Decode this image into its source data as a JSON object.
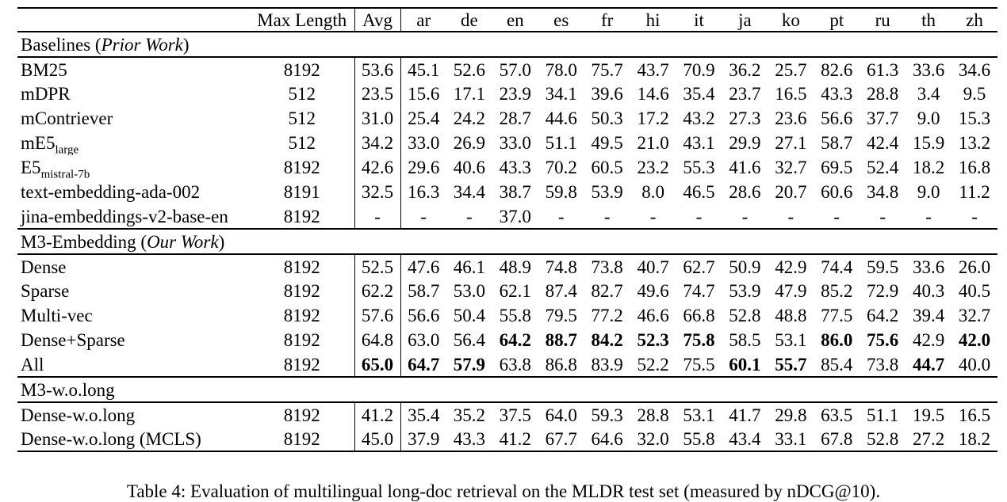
{
  "table": {
    "caption": "Table 4: Evaluation of multilingual long-doc retrieval on the MLDR test set (measured by nDCG@10).",
    "columns": [
      "",
      "Max Length",
      "Avg",
      "ar",
      "de",
      "en",
      "es",
      "fr",
      "hi",
      "it",
      "ja",
      "ko",
      "pt",
      "ru",
      "th",
      "zh"
    ],
    "sections": [
      {
        "title": {
          "prefix": "Baselines (",
          "italic": "Prior Work",
          "suffix": ")"
        },
        "rows": [
          {
            "label": "BM25",
            "label_sub": "",
            "max_length": "8192",
            "avg": "53.6",
            "avg_bold": false,
            "values": [
              "45.1",
              "52.6",
              "57.0",
              "78.0",
              "75.7",
              "43.7",
              "70.9",
              "36.2",
              "25.7",
              "82.6",
              "61.3",
              "33.6",
              "34.6"
            ],
            "bold_indices": []
          },
          {
            "label": "mDPR",
            "label_sub": "",
            "max_length": "512",
            "avg": "23.5",
            "avg_bold": false,
            "values": [
              "15.6",
              "17.1",
              "23.9",
              "34.1",
              "39.6",
              "14.6",
              "35.4",
              "23.7",
              "16.5",
              "43.3",
              "28.8",
              "3.4",
              "9.5"
            ],
            "bold_indices": []
          },
          {
            "label": "mContriever",
            "label_sub": "",
            "max_length": "512",
            "avg": "31.0",
            "avg_bold": false,
            "values": [
              "25.4",
              "24.2",
              "28.7",
              "44.6",
              "50.3",
              "17.2",
              "43.2",
              "27.3",
              "23.6",
              "56.6",
              "37.7",
              "9.0",
              "15.3"
            ],
            "bold_indices": []
          },
          {
            "label": "mE5",
            "label_sub": "large",
            "max_length": "512",
            "avg": "34.2",
            "avg_bold": false,
            "values": [
              "33.0",
              "26.9",
              "33.0",
              "51.1",
              "49.5",
              "21.0",
              "43.1",
              "29.9",
              "27.1",
              "58.7",
              "42.4",
              "15.9",
              "13.2"
            ],
            "bold_indices": []
          },
          {
            "label": "E5",
            "label_sub": "mistral-7b",
            "max_length": "8192",
            "avg": "42.6",
            "avg_bold": false,
            "values": [
              "29.6",
              "40.6",
              "43.3",
              "70.2",
              "60.5",
              "23.2",
              "55.3",
              "41.6",
              "32.7",
              "69.5",
              "52.4",
              "18.2",
              "16.8"
            ],
            "bold_indices": []
          },
          {
            "label": "text-embedding-ada-002",
            "label_sub": "",
            "max_length": "8191",
            "avg": "32.5",
            "avg_bold": false,
            "values": [
              "16.3",
              "34.4",
              "38.7",
              "59.8",
              "53.9",
              "8.0",
              "46.5",
              "28.6",
              "20.7",
              "60.6",
              "34.8",
              "9.0",
              "11.2"
            ],
            "bold_indices": []
          },
          {
            "label": "jina-embeddings-v2-base-en",
            "label_sub": "",
            "max_length": "8192",
            "avg": "-",
            "avg_bold": false,
            "values": [
              "-",
              "-",
              "37.0",
              "-",
              "-",
              "-",
              "-",
              "-",
              "-",
              "-",
              "-",
              "-",
              "-"
            ],
            "bold_indices": []
          }
        ]
      },
      {
        "title": {
          "prefix": "M3-Embedding (",
          "italic": "Our Work",
          "suffix": ")"
        },
        "rows": [
          {
            "label": "Dense",
            "label_sub": "",
            "max_length": "8192",
            "avg": "52.5",
            "avg_bold": false,
            "values": [
              "47.6",
              "46.1",
              "48.9",
              "74.8",
              "73.8",
              "40.7",
              "62.7",
              "50.9",
              "42.9",
              "74.4",
              "59.5",
              "33.6",
              "26.0"
            ],
            "bold_indices": []
          },
          {
            "label": "Sparse",
            "label_sub": "",
            "max_length": "8192",
            "avg": "62.2",
            "avg_bold": false,
            "values": [
              "58.7",
              "53.0",
              "62.1",
              "87.4",
              "82.7",
              "49.6",
              "74.7",
              "53.9",
              "47.9",
              "85.2",
              "72.9",
              "40.3",
              "40.5"
            ],
            "bold_indices": []
          },
          {
            "label": "Multi-vec",
            "label_sub": "",
            "max_length": "8192",
            "avg": "57.6",
            "avg_bold": false,
            "values": [
              "56.6",
              "50.4",
              "55.8",
              "79.5",
              "77.2",
              "46.6",
              "66.8",
              "52.8",
              "48.8",
              "77.5",
              "64.2",
              "39.4",
              "32.7"
            ],
            "bold_indices": []
          },
          {
            "label": "Dense+Sparse",
            "label_sub": "",
            "max_length": "8192",
            "avg": "64.8",
            "avg_bold": false,
            "values": [
              "63.0",
              "56.4",
              "64.2",
              "88.7",
              "84.2",
              "52.3",
              "75.8",
              "58.5",
              "53.1",
              "86.0",
              "75.6",
              "42.9",
              "42.0"
            ],
            "bold_indices": [
              2,
              3,
              4,
              5,
              6,
              9,
              10,
              12
            ]
          },
          {
            "label": "All",
            "label_sub": "",
            "max_length": "8192",
            "avg": "65.0",
            "avg_bold": true,
            "values": [
              "64.7",
              "57.9",
              "63.8",
              "86.8",
              "83.9",
              "52.2",
              "75.5",
              "60.1",
              "55.7",
              "85.4",
              "73.8",
              "44.7",
              "40.0"
            ],
            "bold_indices": [
              0,
              1,
              7,
              8,
              11
            ]
          }
        ]
      },
      {
        "title": {
          "prefix": "M3-w.o.long",
          "italic": "",
          "suffix": ""
        },
        "rows": [
          {
            "label": "Dense-w.o.long",
            "label_sub": "",
            "max_length": "8192",
            "avg": "41.2",
            "avg_bold": false,
            "values": [
              "35.4",
              "35.2",
              "37.5",
              "64.0",
              "59.3",
              "28.8",
              "53.1",
              "41.7",
              "29.8",
              "63.5",
              "51.1",
              "19.5",
              "16.5"
            ],
            "bold_indices": []
          },
          {
            "label": "Dense-w.o.long (MCLS)",
            "label_sub": "",
            "max_length": "8192",
            "avg": "45.0",
            "avg_bold": false,
            "values": [
              "37.9",
              "43.3",
              "41.2",
              "67.7",
              "64.6",
              "32.0",
              "55.8",
              "43.4",
              "33.1",
              "67.8",
              "52.8",
              "27.2",
              "18.2"
            ],
            "bold_indices": []
          }
        ]
      }
    ]
  }
}
